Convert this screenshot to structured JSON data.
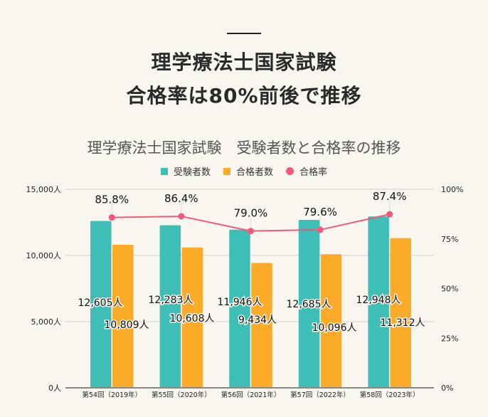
{
  "header": {
    "title_line1": "理学療法士国家試験",
    "title_line2": "合格率は80%前後で推移"
  },
  "chart_data": {
    "type": "bar",
    "title": "理学療法士国家試験　受験者数と合格率の推移",
    "categories": [
      "第54回（2019年）",
      "第55回（2020年）",
      "第56回（2021年）",
      "第57回（2022年）",
      "第58回（2023年）"
    ],
    "series": [
      {
        "name": "受験者数",
        "type": "bar",
        "color": "#3dbfb8",
        "values": [
          12605,
          12283,
          11946,
          12685,
          12948
        ],
        "labels": [
          "12,605人",
          "12,283人",
          "11,946人",
          "12,685人",
          "12,948人"
        ]
      },
      {
        "name": "合格者数",
        "type": "bar",
        "color": "#fbab27",
        "values": [
          10809,
          10608,
          9434,
          10096,
          11312
        ],
        "labels": [
          "10,809人",
          "10,608人",
          "9,434人",
          "10,096人",
          "11,312人"
        ]
      },
      {
        "name": "合格率",
        "type": "line",
        "color": "#f5577a",
        "values": [
          85.8,
          86.4,
          79.0,
          79.6,
          87.4
        ],
        "labels": [
          "85.8%",
          "86.4%",
          "79.0%",
          "79.6%",
          "87.4%"
        ],
        "axis": "right"
      }
    ],
    "y_left": {
      "ticks": [
        "0人",
        "5,000人",
        "10,000人",
        "15,000人"
      ],
      "range": [
        0,
        15000
      ]
    },
    "y_right": {
      "ticks": [
        "0%",
        "25%",
        "50%",
        "75%",
        "100%"
      ],
      "range": [
        0,
        100
      ]
    },
    "legend_position": "top",
    "grid": true
  },
  "legend": [
    {
      "label": "受験者数",
      "color": "#3dbfb8",
      "shape": "square"
    },
    {
      "label": "合格者数",
      "color": "#fbab27",
      "shape": "square"
    },
    {
      "label": "合格率",
      "color": "#f5577a",
      "shape": "circle"
    }
  ]
}
